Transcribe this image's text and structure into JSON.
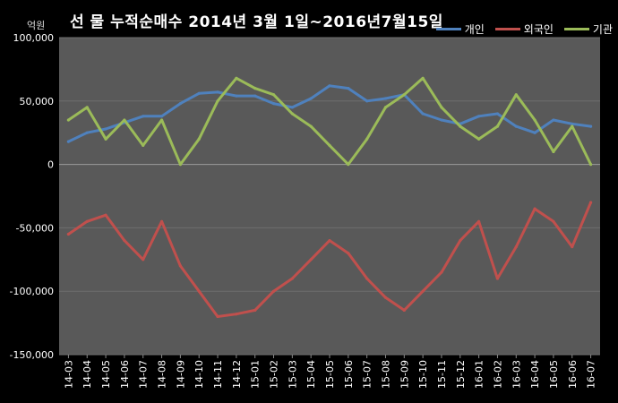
{
  "chart_data": {
    "type": "line",
    "title": "선 물 누적순매수 2014년 3월 1일~2016년7월15일",
    "unit_label": "억원",
    "ylim": [
      -150000,
      100000
    ],
    "y_ticks": [
      "100,000",
      "50,000",
      "0",
      "-50,000",
      "-100,000",
      "-150,000"
    ],
    "y_tick_values": [
      100000,
      50000,
      0,
      -50000,
      -100000,
      -150000
    ],
    "x_ticks": [
      "14-03",
      "14-04",
      "14-05",
      "14-06",
      "14-07",
      "14-08",
      "14-09",
      "14-10",
      "14-11",
      "14-12",
      "15-01",
      "15-02",
      "15-03",
      "15-04",
      "15-05",
      "15-06",
      "15-07",
      "15-08",
      "15-09",
      "15-10",
      "15-11",
      "15-12",
      "16-01",
      "16-02",
      "16-03",
      "16-04",
      "16-05",
      "16-06",
      "16-07"
    ],
    "grid": true,
    "legend_position": "top-right",
    "series": [
      {
        "name": "개인",
        "color": "#4F81BD",
        "values": [
          18000,
          25000,
          28000,
          33000,
          38000,
          38000,
          48000,
          56000,
          57000,
          54000,
          54000,
          48000,
          45000,
          52000,
          62000,
          60000,
          50000,
          52000,
          55000,
          40000,
          35000,
          32000,
          38000,
          40000,
          30000,
          25000,
          35000,
          32000,
          30000
        ]
      },
      {
        "name": "외국인",
        "color": "#C0504D",
        "values": [
          -55000,
          -45000,
          -40000,
          -60000,
          -75000,
          -45000,
          -80000,
          -100000,
          -120000,
          -118000,
          -115000,
          -100000,
          -90000,
          -75000,
          -60000,
          -70000,
          -90000,
          -105000,
          -115000,
          -100000,
          -85000,
          -60000,
          -45000,
          -90000,
          -65000,
          -35000,
          -45000,
          -65000,
          -30000
        ]
      },
      {
        "name": "기관",
        "color": "#9BBB59",
        "values": [
          35000,
          45000,
          20000,
          35000,
          15000,
          35000,
          0,
          20000,
          50000,
          68000,
          60000,
          55000,
          40000,
          30000,
          15000,
          0,
          20000,
          45000,
          55000,
          68000,
          45000,
          30000,
          20000,
          30000,
          55000,
          35000,
          10000,
          30000,
          0
        ]
      }
    ]
  }
}
